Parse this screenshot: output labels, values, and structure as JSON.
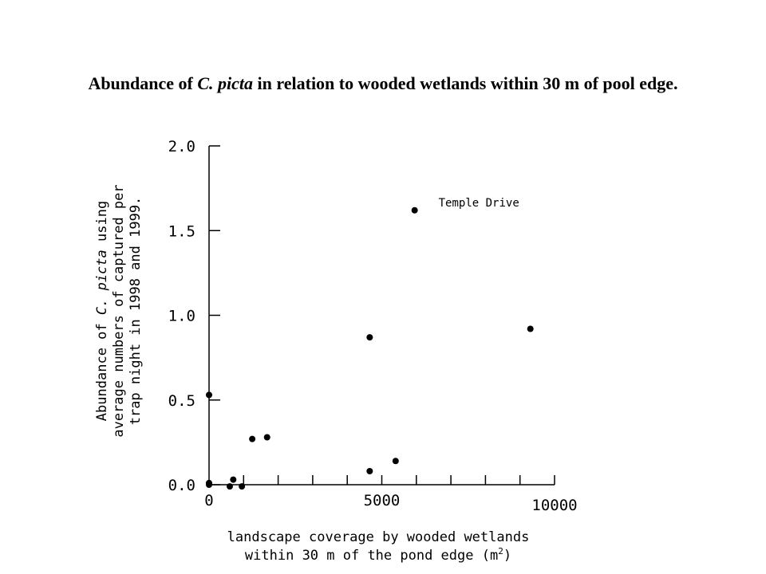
{
  "title": {
    "pre": "Abundance of ",
    "species": "C. picta",
    "post": " in relation to wooded wetlands within 30 m of pool edge."
  },
  "chart_data": {
    "type": "scatter",
    "title": "Abundance of C. picta in relation to wooded wetlands within 30 m of pool edge.",
    "xlabel": {
      "line1": "landscape coverage by wooded wetlands",
      "line2_pre": "within 30 m of the pond edge (m",
      "line2_sup": "2",
      "line2_post": ")"
    },
    "ylabel": {
      "line1_pre": "Abundance of ",
      "line1_italic": "C. picta",
      "line1_post": " using",
      "line2": "average numbers of captured per",
      "line3": "trap night in 1998 and 1999."
    },
    "xlim": [
      0,
      10000
    ],
    "ylim": [
      0,
      2.0
    ],
    "x_tick_labels": [
      {
        "value": 0,
        "label": "0"
      },
      {
        "value": 5000,
        "label": "5000"
      },
      {
        "value": 10000,
        "label": "10000"
      }
    ],
    "x_minor_ticks": [
      1000,
      2000,
      3000,
      4000,
      5000,
      6000,
      7000,
      8000,
      9000,
      10000
    ],
    "y_ticks": [
      {
        "value": 0.0,
        "label": "0.0"
      },
      {
        "value": 0.5,
        "label": "0.5"
      },
      {
        "value": 1.0,
        "label": "1.0"
      },
      {
        "value": 1.5,
        "label": "1.5"
      },
      {
        "value": 2.0,
        "label": "2.0"
      }
    ],
    "grid": false,
    "points": [
      {
        "x": 0,
        "y": 0.53
      },
      {
        "x": 0,
        "y": 0.0
      },
      {
        "x": 0,
        "y": 0.01
      },
      {
        "x": 600,
        "y": -0.01
      },
      {
        "x": 700,
        "y": 0.03
      },
      {
        "x": 950,
        "y": -0.01
      },
      {
        "x": 1250,
        "y": 0.27
      },
      {
        "x": 1680,
        "y": 0.28
      },
      {
        "x": 4650,
        "y": 0.08
      },
      {
        "x": 4650,
        "y": 0.87
      },
      {
        "x": 5400,
        "y": 0.14
      },
      {
        "x": 5950,
        "y": 1.62
      },
      {
        "x": 9300,
        "y": 0.92
      }
    ],
    "annotations": [
      {
        "text": "Temple Drive",
        "x": 5950,
        "y": 1.62
      }
    ]
  }
}
